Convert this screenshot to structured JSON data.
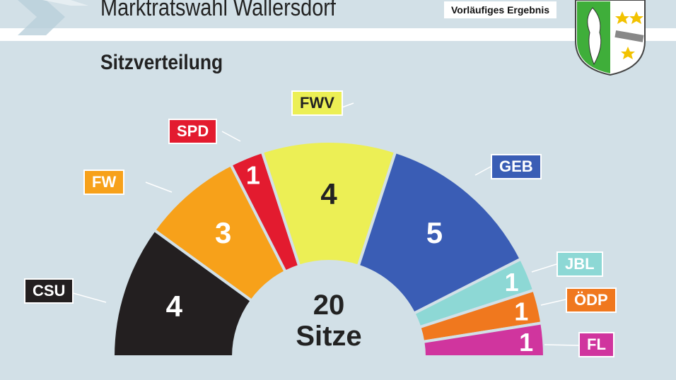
{
  "header": {
    "title": "Marktratswahl Wallersdorf",
    "badge": "Vorläufiges Ergebnis"
  },
  "chart_data": {
    "type": "pie",
    "title": "Sitzverteilung",
    "shape": "semicircle-donut",
    "total_label": {
      "number": "20",
      "unit": "Sitze"
    },
    "categories": [
      "CSU",
      "FW",
      "SPD",
      "FWV",
      "GEB",
      "JBL",
      "ÖDP",
      "FL"
    ],
    "values": [
      4,
      3,
      1,
      4,
      5,
      1,
      1,
      1
    ],
    "colors": [
      "#231f20",
      "#f7a11a",
      "#e31b2f",
      "#ecef55",
      "#3a5db5",
      "#8dd8d5",
      "#f0781e",
      "#d0359e"
    ],
    "label_text_colors": [
      "#fff",
      "#fff",
      "#fff",
      "#222",
      "#fff",
      "#fff",
      "#fff",
      "#fff"
    ]
  }
}
